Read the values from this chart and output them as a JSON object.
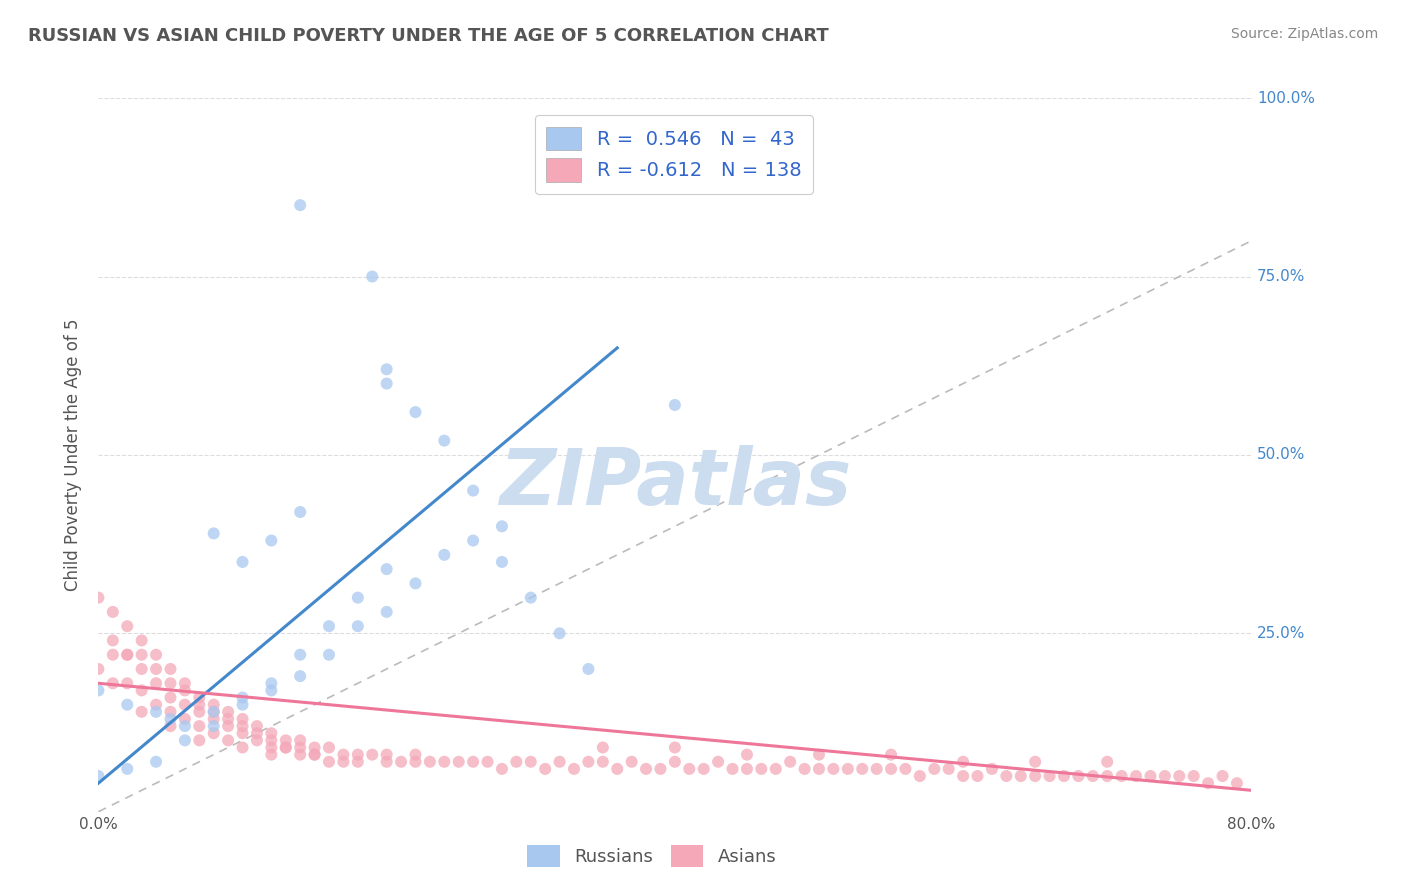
{
  "title": "RUSSIAN VS ASIAN CHILD POVERTY UNDER THE AGE OF 5 CORRELATION CHART",
  "source": "Source: ZipAtlas.com",
  "ylabel": "Child Poverty Under the Age of 5",
  "xlim": [
    0.0,
    0.8
  ],
  "ylim": [
    0.0,
    1.0
  ],
  "xticks": [
    0.0,
    0.1,
    0.2,
    0.3,
    0.4,
    0.5,
    0.6,
    0.7,
    0.8
  ],
  "xticklabels": [
    "0.0%",
    "",
    "",
    "",
    "",
    "",
    "",
    "",
    "80.0%"
  ],
  "yticks": [
    0.0,
    0.25,
    0.5,
    0.75,
    1.0
  ],
  "yticklabels_right": [
    "",
    "25.0%",
    "50.0%",
    "75.0%",
    "100.0%"
  ],
  "russian_R": 0.546,
  "russian_N": 43,
  "asian_R": -0.612,
  "asian_N": 138,
  "russian_color": "#a8c8f0",
  "asian_color": "#f4a8b8",
  "russian_line_color": "#4488cc",
  "asian_line_color": "#ee7799",
  "diag_line_color": "#bbbbbb",
  "legend_color": "#3366cc",
  "watermark_color": "#ccddf0",
  "background_color": "#ffffff",
  "grid_color": "#dddddd",
  "title_color": "#555555",
  "source_color": "#888888",
  "ytick_color": "#4488cc",
  "russian_x": [
    0.14,
    0.19,
    0.2,
    0.2,
    0.22,
    0.24,
    0.26,
    0.28,
    0.4,
    0.08,
    0.1,
    0.12,
    0.14,
    0.0,
    0.02,
    0.04,
    0.05,
    0.06,
    0.08,
    0.1,
    0.12,
    0.14,
    0.16,
    0.18,
    0.2,
    0.0,
    0.02,
    0.04,
    0.06,
    0.08,
    0.1,
    0.12,
    0.14,
    0.16,
    0.18,
    0.2,
    0.22,
    0.24,
    0.26,
    0.28,
    0.3,
    0.32,
    0.34
  ],
  "russian_y": [
    0.85,
    0.75,
    0.62,
    0.6,
    0.56,
    0.52,
    0.45,
    0.4,
    0.57,
    0.39,
    0.35,
    0.38,
    0.42,
    0.17,
    0.15,
    0.14,
    0.13,
    0.12,
    0.14,
    0.16,
    0.18,
    0.22,
    0.26,
    0.3,
    0.34,
    0.05,
    0.06,
    0.07,
    0.1,
    0.12,
    0.15,
    0.17,
    0.19,
    0.22,
    0.26,
    0.28,
    0.32,
    0.36,
    0.38,
    0.35,
    0.3,
    0.25,
    0.2
  ],
  "asian_x": [
    0.0,
    0.0,
    0.01,
    0.01,
    0.01,
    0.02,
    0.02,
    0.02,
    0.03,
    0.03,
    0.03,
    0.03,
    0.04,
    0.04,
    0.04,
    0.05,
    0.05,
    0.05,
    0.05,
    0.06,
    0.06,
    0.06,
    0.07,
    0.07,
    0.07,
    0.07,
    0.08,
    0.08,
    0.08,
    0.09,
    0.09,
    0.09,
    0.1,
    0.1,
    0.1,
    0.11,
    0.11,
    0.12,
    0.12,
    0.12,
    0.13,
    0.13,
    0.14,
    0.14,
    0.15,
    0.15,
    0.16,
    0.16,
    0.17,
    0.17,
    0.18,
    0.18,
    0.19,
    0.2,
    0.2,
    0.21,
    0.22,
    0.22,
    0.23,
    0.24,
    0.25,
    0.26,
    0.27,
    0.28,
    0.29,
    0.3,
    0.31,
    0.32,
    0.33,
    0.34,
    0.35,
    0.36,
    0.37,
    0.38,
    0.39,
    0.4,
    0.41,
    0.42,
    0.43,
    0.44,
    0.45,
    0.46,
    0.47,
    0.48,
    0.49,
    0.5,
    0.51,
    0.52,
    0.53,
    0.54,
    0.55,
    0.56,
    0.57,
    0.58,
    0.59,
    0.6,
    0.61,
    0.62,
    0.63,
    0.64,
    0.65,
    0.66,
    0.67,
    0.68,
    0.69,
    0.7,
    0.71,
    0.72,
    0.73,
    0.74,
    0.75,
    0.76,
    0.77,
    0.78,
    0.79,
    0.01,
    0.02,
    0.03,
    0.04,
    0.05,
    0.06,
    0.07,
    0.08,
    0.09,
    0.1,
    0.11,
    0.12,
    0.13,
    0.14,
    0.15,
    0.35,
    0.4,
    0.45,
    0.5,
    0.55,
    0.6,
    0.65,
    0.7
  ],
  "asian_y": [
    0.3,
    0.2,
    0.28,
    0.22,
    0.18,
    0.26,
    0.22,
    0.18,
    0.24,
    0.2,
    0.17,
    0.14,
    0.22,
    0.18,
    0.15,
    0.2,
    0.16,
    0.14,
    0.12,
    0.18,
    0.15,
    0.13,
    0.16,
    0.14,
    0.12,
    0.1,
    0.15,
    0.13,
    0.11,
    0.14,
    0.12,
    0.1,
    0.13,
    0.11,
    0.09,
    0.12,
    0.1,
    0.11,
    0.09,
    0.08,
    0.1,
    0.09,
    0.1,
    0.08,
    0.09,
    0.08,
    0.09,
    0.07,
    0.08,
    0.07,
    0.08,
    0.07,
    0.08,
    0.08,
    0.07,
    0.07,
    0.08,
    0.07,
    0.07,
    0.07,
    0.07,
    0.07,
    0.07,
    0.06,
    0.07,
    0.07,
    0.06,
    0.07,
    0.06,
    0.07,
    0.07,
    0.06,
    0.07,
    0.06,
    0.06,
    0.07,
    0.06,
    0.06,
    0.07,
    0.06,
    0.06,
    0.06,
    0.06,
    0.07,
    0.06,
    0.06,
    0.06,
    0.06,
    0.06,
    0.06,
    0.06,
    0.06,
    0.05,
    0.06,
    0.06,
    0.05,
    0.05,
    0.06,
    0.05,
    0.05,
    0.05,
    0.05,
    0.05,
    0.05,
    0.05,
    0.05,
    0.05,
    0.05,
    0.05,
    0.05,
    0.05,
    0.05,
    0.04,
    0.05,
    0.04,
    0.24,
    0.22,
    0.22,
    0.2,
    0.18,
    0.17,
    0.15,
    0.14,
    0.13,
    0.12,
    0.11,
    0.1,
    0.09,
    0.09,
    0.08,
    0.09,
    0.09,
    0.08,
    0.08,
    0.08,
    0.07,
    0.07,
    0.07
  ],
  "russian_line_x": [
    0.0,
    0.36
  ],
  "russian_line_y": [
    0.04,
    0.65
  ],
  "asian_line_x": [
    0.0,
    0.8
  ],
  "asian_line_y": [
    0.18,
    0.03
  ]
}
